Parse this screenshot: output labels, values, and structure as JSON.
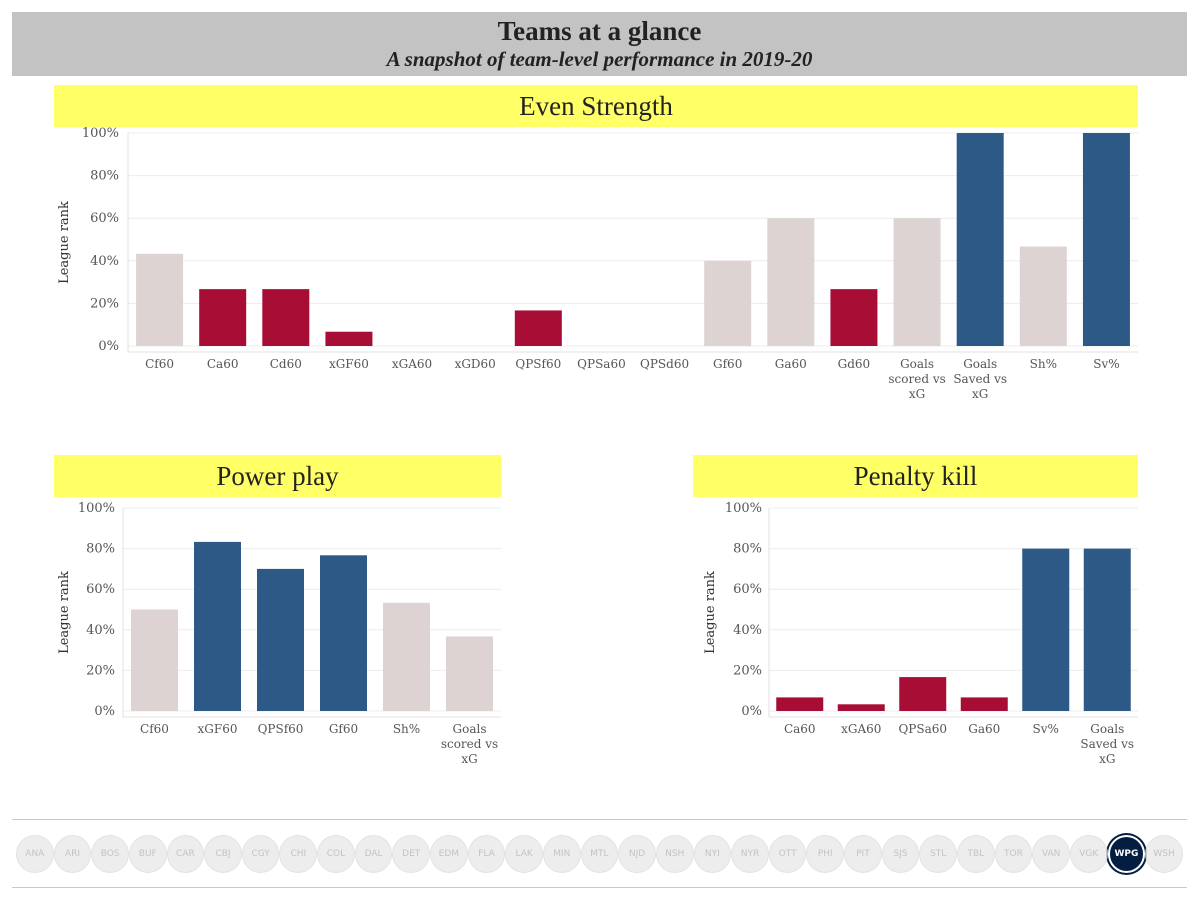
{
  "header": {
    "title": "Teams at a glance",
    "subtitle": "A snapshot of team-level performance in 2019-20"
  },
  "colors": {
    "neutral": "#ddd3d3",
    "bad": "#a80d35",
    "good": "#2d5987",
    "banner": "#ffff66",
    "header_bg": "#c3c3c3"
  },
  "sections": {
    "even_strength": "Even Strength",
    "power_play": "Power play",
    "penalty_kill": "Penalty kill"
  },
  "chart_data": [
    {
      "id": "even-strength",
      "type": "bar",
      "title": "Even Strength",
      "ylabel": "League rank",
      "ylim": [
        0,
        100
      ],
      "yticks": [
        "0%",
        "20%",
        "40%",
        "60%",
        "80%",
        "100%"
      ],
      "grid": true,
      "categories": [
        "Cf60",
        "Ca60",
        "Cd60",
        "xGF60",
        "xGA60",
        "xGD60",
        "QPSf60",
        "QPSa60",
        "QPSd60",
        "Gf60",
        "Ga60",
        "Gd60",
        "Goals scored vs xG",
        "Goals Saved vs xG",
        "Sh%",
        "Sv%"
      ],
      "values": [
        43.3,
        26.7,
        26.7,
        6.7,
        0,
        0,
        16.7,
        0,
        0,
        40,
        60,
        26.7,
        60,
        100,
        46.7,
        100
      ],
      "bar_colors": [
        "neutral",
        "bad",
        "bad",
        "bad",
        "neutral",
        "neutral",
        "bad",
        "neutral",
        "neutral",
        "neutral",
        "neutral",
        "bad",
        "neutral",
        "good",
        "neutral",
        "good"
      ]
    },
    {
      "id": "power-play",
      "type": "bar",
      "title": "Power play",
      "ylabel": "League rank",
      "ylim": [
        0,
        100
      ],
      "yticks": [
        "0%",
        "20%",
        "40%",
        "60%",
        "80%",
        "100%"
      ],
      "grid": true,
      "categories": [
        "Cf60",
        "xGF60",
        "QPSf60",
        "Gf60",
        "Sh%",
        "Goals scored vs xG"
      ],
      "values": [
        50,
        83.3,
        70,
        76.7,
        53.3,
        36.7
      ],
      "bar_colors": [
        "neutral",
        "good",
        "good",
        "good",
        "neutral",
        "neutral"
      ]
    },
    {
      "id": "penalty-kill",
      "type": "bar",
      "title": "Penalty kill",
      "ylabel": "League rank",
      "ylim": [
        0,
        100
      ],
      "yticks": [
        "0%",
        "20%",
        "40%",
        "60%",
        "80%",
        "100%"
      ],
      "grid": true,
      "categories": [
        "Ca60",
        "xGA60",
        "QPSa60",
        "Ga60",
        "Sv%",
        "Goals Saved vs xG"
      ],
      "values": [
        6.7,
        3.3,
        16.7,
        6.7,
        80,
        80
      ],
      "bar_colors": [
        "bad",
        "bad",
        "bad",
        "bad",
        "good",
        "good"
      ]
    }
  ],
  "team_logos": [
    "ANA",
    "ARI",
    "BOS",
    "BUF",
    "CAR",
    "CBJ",
    "CGY",
    "CHI",
    "COL",
    "DAL",
    "DET",
    "EDM",
    "FLA",
    "LAK",
    "MIN",
    "MTL",
    "NJD",
    "NSH",
    "NYI",
    "NYR",
    "OTT",
    "PHI",
    "PIT",
    "SJS",
    "STL",
    "TBL",
    "TOR",
    "VAN",
    "VGK",
    "WPG",
    "WSH"
  ],
  "highlighted_team": "WPG"
}
